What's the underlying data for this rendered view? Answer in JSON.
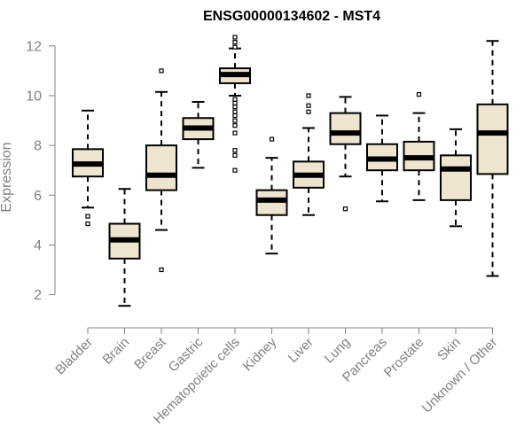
{
  "chart_data": {
    "type": "box",
    "title": "ENSG00000134602 - MST4",
    "xlabel": "",
    "ylabel": "Expression",
    "ylim": [
      1.2,
      12.6
    ],
    "yticks": [
      2,
      4,
      6,
      8,
      10,
      12
    ],
    "colors": {
      "box_fill": "#ede5cf",
      "box_stroke": "#000000",
      "axis": "#808080",
      "label": "#808080"
    },
    "categories": [
      "Bladder",
      "Brain",
      "Breast",
      "Gastric",
      "Hematopoietic cells",
      "Kidney",
      "Liver",
      "Lung",
      "Pancreas",
      "Prostate",
      "Skin",
      "Unknown / Other"
    ],
    "boxes": [
      {
        "name": "Bladder",
        "min": 5.5,
        "q1": 6.75,
        "median": 7.25,
        "q3": 7.85,
        "max": 9.4,
        "outliers": [
          5.15,
          4.85
        ]
      },
      {
        "name": "Brain",
        "min": 1.55,
        "q1": 3.45,
        "median": 4.2,
        "q3": 4.85,
        "max": 6.25,
        "outliers": []
      },
      {
        "name": "Breast",
        "min": 4.6,
        "q1": 6.2,
        "median": 6.8,
        "q3": 8.0,
        "max": 10.15,
        "outliers": [
          11.0,
          3.0
        ]
      },
      {
        "name": "Gastric",
        "min": 7.1,
        "q1": 8.25,
        "median": 8.7,
        "q3": 9.1,
        "max": 9.75,
        "outliers": []
      },
      {
        "name": "Hematopoietic cells",
        "min": 10.0,
        "q1": 10.5,
        "median": 10.85,
        "q3": 11.1,
        "max": 11.9,
        "outliers": [
          12.35,
          12.15,
          11.95,
          9.85,
          9.7,
          9.55,
          9.35,
          9.2,
          9.0,
          8.8,
          8.5,
          7.8,
          7.6,
          7.0
        ]
      },
      {
        "name": "Kidney",
        "min": 3.65,
        "q1": 5.2,
        "median": 5.8,
        "q3": 6.2,
        "max": 7.5,
        "outliers": [
          8.25
        ]
      },
      {
        "name": "Liver",
        "min": 5.2,
        "q1": 6.3,
        "median": 6.8,
        "q3": 7.35,
        "max": 8.7,
        "outliers": [
          10.0,
          9.6,
          9.35
        ]
      },
      {
        "name": "Lung",
        "min": 6.75,
        "q1": 8.05,
        "median": 8.5,
        "q3": 9.3,
        "max": 9.95,
        "outliers": [
          5.45
        ]
      },
      {
        "name": "Pancreas",
        "min": 5.75,
        "q1": 7.0,
        "median": 7.45,
        "q3": 8.05,
        "max": 9.2,
        "outliers": []
      },
      {
        "name": "Prostate",
        "min": 5.8,
        "q1": 7.0,
        "median": 7.5,
        "q3": 8.15,
        "max": 9.3,
        "outliers": [
          10.05
        ]
      },
      {
        "name": "Skin",
        "min": 4.75,
        "q1": 5.8,
        "median": 7.05,
        "q3": 7.6,
        "max": 8.65,
        "outliers": []
      },
      {
        "name": "Unknown / Other",
        "min": 2.75,
        "q1": 6.85,
        "median": 8.5,
        "q3": 9.65,
        "max": 12.2,
        "outliers": []
      }
    ]
  }
}
